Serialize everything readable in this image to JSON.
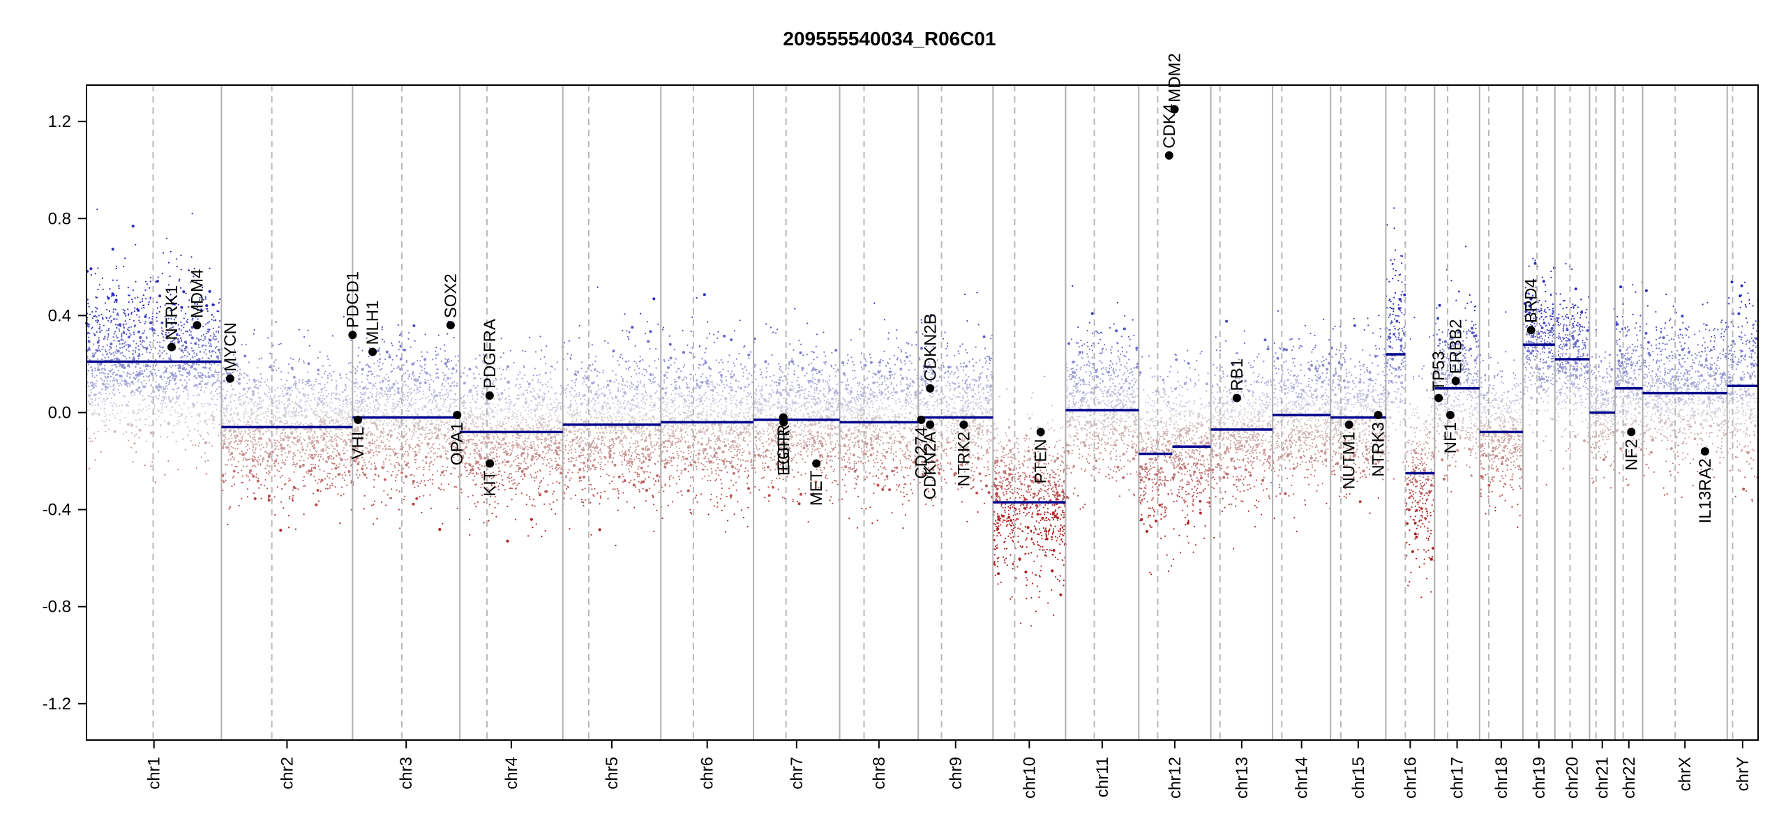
{
  "chart_data": {
    "type": "scatter",
    "title": "209555540034_R06C01",
    "xlabel": "",
    "ylabel": "",
    "ylim": [
      -1.35,
      1.35
    ],
    "yticks": [
      "1.2",
      "0.8",
      "0.4",
      "0.0",
      "-0.4",
      "-0.8",
      "-1.2"
    ],
    "ytick_values": [
      1.2,
      0.8,
      0.4,
      0.0,
      -0.4,
      -0.8,
      -1.2
    ],
    "genome_units": "Mb",
    "chromosomes": [
      {
        "name": "chr1",
        "length": 249,
        "centromere": 123
      },
      {
        "name": "chr2",
        "length": 242,
        "centromere": 93
      },
      {
        "name": "chr3",
        "length": 198,
        "centromere": 91
      },
      {
        "name": "chr4",
        "length": 190,
        "centromere": 50
      },
      {
        "name": "chr5",
        "length": 181,
        "centromere": 48
      },
      {
        "name": "chr6",
        "length": 171,
        "centromere": 60
      },
      {
        "name": "chr7",
        "length": 159,
        "centromere": 60
      },
      {
        "name": "chr8",
        "length": 145,
        "centromere": 45
      },
      {
        "name": "chr9",
        "length": 138,
        "centromere": 43
      },
      {
        "name": "chr10",
        "length": 134,
        "centromere": 40
      },
      {
        "name": "chr11",
        "length": 135,
        "centromere": 53
      },
      {
        "name": "chr12",
        "length": 133,
        "centromere": 35
      },
      {
        "name": "chr13",
        "length": 114,
        "centromere": 17
      },
      {
        "name": "chr14",
        "length": 107,
        "centromere": 17
      },
      {
        "name": "chr15",
        "length": 102,
        "centromere": 19
      },
      {
        "name": "chr16",
        "length": 90,
        "centromere": 36
      },
      {
        "name": "chr17",
        "length": 83,
        "centromere": 24
      },
      {
        "name": "chr18",
        "length": 80,
        "centromere": 17
      },
      {
        "name": "chr19",
        "length": 59,
        "centromere": 26
      },
      {
        "name": "chr20",
        "length": 64,
        "centromere": 28
      },
      {
        "name": "chr21",
        "length": 47,
        "centromere": 12
      },
      {
        "name": "chr22",
        "length": 51,
        "centromere": 15
      },
      {
        "name": "chrX",
        "length": 156,
        "centromere": 60
      },
      {
        "name": "chrY",
        "length": 57,
        "centromere": 10
      }
    ],
    "segments": [
      {
        "chr": "chr1",
        "start": 0,
        "end": 249,
        "value": 0.21
      },
      {
        "chr": "chr2",
        "start": 0,
        "end": 242,
        "value": -0.06
      },
      {
        "chr": "chr3",
        "start": 0,
        "end": 198,
        "value": -0.02
      },
      {
        "chr": "chr4",
        "start": 0,
        "end": 190,
        "value": -0.08
      },
      {
        "chr": "chr5",
        "start": 0,
        "end": 181,
        "value": -0.05
      },
      {
        "chr": "chr6",
        "start": 0,
        "end": 171,
        "value": -0.04
      },
      {
        "chr": "chr7",
        "start": 0,
        "end": 159,
        "value": -0.03
      },
      {
        "chr": "chr8",
        "start": 0,
        "end": 145,
        "value": -0.04
      },
      {
        "chr": "chr9",
        "start": 0,
        "end": 138,
        "value": -0.02
      },
      {
        "chr": "chr10",
        "start": 0,
        "end": 134,
        "value": -0.37
      },
      {
        "chr": "chr11",
        "start": 0,
        "end": 135,
        "value": 0.01
      },
      {
        "chr": "chr12",
        "start": 0,
        "end": 62,
        "value": -0.17
      },
      {
        "chr": "chr12",
        "start": 62,
        "end": 133,
        "value": -0.14
      },
      {
        "chr": "chr13",
        "start": 0,
        "end": 114,
        "value": -0.07
      },
      {
        "chr": "chr14",
        "start": 0,
        "end": 107,
        "value": -0.01
      },
      {
        "chr": "chr15",
        "start": 0,
        "end": 102,
        "value": -0.02
      },
      {
        "chr": "chr16",
        "start": 0,
        "end": 36,
        "value": 0.24
      },
      {
        "chr": "chr16",
        "start": 36,
        "end": 90,
        "value": -0.25
      },
      {
        "chr": "chr17",
        "start": 0,
        "end": 83,
        "value": 0.1
      },
      {
        "chr": "chr18",
        "start": 0,
        "end": 80,
        "value": -0.08
      },
      {
        "chr": "chr19",
        "start": 0,
        "end": 59,
        "value": 0.28
      },
      {
        "chr": "chr20",
        "start": 0,
        "end": 64,
        "value": 0.22
      },
      {
        "chr": "chr21",
        "start": 0,
        "end": 47,
        "value": 0.0
      },
      {
        "chr": "chr22",
        "start": 0,
        "end": 51,
        "value": 0.1
      },
      {
        "chr": "chrX",
        "start": 0,
        "end": 156,
        "value": 0.08
      },
      {
        "chr": "chrY",
        "start": 0,
        "end": 57,
        "value": 0.11
      }
    ],
    "genes": [
      {
        "name": "NTRK1",
        "chr": "chr1",
        "pos": 157,
        "value": 0.27
      },
      {
        "name": "MDM4",
        "chr": "chr1",
        "pos": 204,
        "value": 0.36
      },
      {
        "name": "MYCN",
        "chr": "chr2",
        "pos": 16,
        "value": 0.14
      },
      {
        "name": "PDCD1",
        "chr": "chr2",
        "pos": 242,
        "value": 0.32
      },
      {
        "name": "VHL",
        "chr": "chr3",
        "pos": 10,
        "value": -0.03
      },
      {
        "name": "MLH1",
        "chr": "chr3",
        "pos": 37,
        "value": 0.25
      },
      {
        "name": "SOX2",
        "chr": "chr3",
        "pos": 181,
        "value": 0.36
      },
      {
        "name": "OPA1",
        "chr": "chr3",
        "pos": 193,
        "value": -0.01
      },
      {
        "name": "PDGFRA",
        "chr": "chr4",
        "pos": 55,
        "value": 0.07
      },
      {
        "name": "KIT",
        "chr": "chr4",
        "pos": 55.5,
        "value": -0.21
      },
      {
        "name": "EGFR",
        "chr": "chr7",
        "pos": 55,
        "value": -0.02
      },
      {
        "name": "EGFR_dup",
        "label": "EGFR",
        "chr": "chr7",
        "pos": 55.6,
        "value": -0.04
      },
      {
        "name": "MET",
        "chr": "chr7",
        "pos": 116,
        "value": -0.21
      },
      {
        "name": "CDKN2A",
        "chr": "chr9",
        "pos": 21.9,
        "value": -0.05
      },
      {
        "name": "CDKN2B",
        "chr": "chr9",
        "pos": 22,
        "value": 0.1
      },
      {
        "name": "CD274",
        "chr": "chr9",
        "pos": 5.5,
        "value": -0.03
      },
      {
        "name": "NTRK2",
        "chr": "chr9",
        "pos": 84,
        "value": -0.05
      },
      {
        "name": "PTEN",
        "chr": "chr10",
        "pos": 88,
        "value": -0.08
      },
      {
        "name": "CDK4",
        "chr": "chr12",
        "pos": 56,
        "value": 1.06
      },
      {
        "name": "MDM2",
        "chr": "chr12",
        "pos": 66,
        "value": 1.25
      },
      {
        "name": "RB1",
        "chr": "chr13",
        "pos": 48,
        "value": 0.06
      },
      {
        "name": "NUTM1",
        "chr": "chr15",
        "pos": 34,
        "value": -0.05
      },
      {
        "name": "NTRK3",
        "chr": "chr15",
        "pos": 88,
        "value": -0.01
      },
      {
        "name": "TP53",
        "chr": "chr17",
        "pos": 7.5,
        "value": 0.06
      },
      {
        "name": "NF1",
        "chr": "chr17",
        "pos": 29,
        "value": -0.01
      },
      {
        "name": "ERBB2",
        "chr": "chr17",
        "pos": 39,
        "value": 0.13
      },
      {
        "name": "BRD4",
        "chr": "chr19",
        "pos": 15,
        "value": 0.34
      },
      {
        "name": "NF2",
        "chr": "chr22",
        "pos": 30,
        "value": -0.08
      },
      {
        "name": "IL13RA2",
        "chrs": "chrX",
        "chr": "chrX",
        "pos": 115,
        "value": -0.16
      }
    ],
    "probe_profile": [
      {
        "chr": "chr1",
        "mean": 0.21,
        "spread": 0.16
      },
      {
        "chr": "chr2",
        "mean": -0.06,
        "spread": 0.14
      },
      {
        "chr": "chr3",
        "mean": -0.02,
        "spread": 0.15
      },
      {
        "chr": "chr4",
        "mean": -0.08,
        "spread": 0.14
      },
      {
        "chr": "chr5",
        "mean": -0.05,
        "spread": 0.15
      },
      {
        "chr": "chr6",
        "mean": -0.04,
        "spread": 0.15
      },
      {
        "chr": "chr7",
        "mean": -0.03,
        "spread": 0.14
      },
      {
        "chr": "chr8",
        "mean": -0.04,
        "spread": 0.15
      },
      {
        "chr": "chr9",
        "mean": -0.02,
        "spread": 0.15
      },
      {
        "chr": "chr10",
        "mean": -0.37,
        "spread": 0.17
      },
      {
        "chr": "chr11",
        "mean": 0.01,
        "spread": 0.15
      },
      {
        "chr": "chr12",
        "mean": -0.15,
        "spread": 0.16
      },
      {
        "chr": "chr13",
        "mean": -0.07,
        "spread": 0.14
      },
      {
        "chr": "chr14",
        "mean": -0.01,
        "spread": 0.15
      },
      {
        "chr": "chr15",
        "mean": -0.02,
        "spread": 0.14
      },
      {
        "chr": "chr16",
        "mean": 0.0,
        "spread": 0.2
      },
      {
        "chr": "chr17",
        "mean": 0.1,
        "spread": 0.16
      },
      {
        "chr": "chr18",
        "mean": -0.08,
        "spread": 0.13
      },
      {
        "chr": "chr19",
        "mean": 0.28,
        "spread": 0.14
      },
      {
        "chr": "chr20",
        "mean": 0.22,
        "spread": 0.14
      },
      {
        "chr": "chr21",
        "mean": 0.0,
        "spread": 0.12
      },
      {
        "chr": "chr22",
        "mean": 0.1,
        "spread": 0.15
      },
      {
        "chr": "chrX",
        "mean": 0.08,
        "spread": 0.14
      },
      {
        "chr": "chrY",
        "mean": 0.11,
        "spread": 0.18
      }
    ],
    "colors": {
      "gain": "#2b2bb0",
      "loss": "#b01818",
      "neutral": "#cfcfcf",
      "segment": "#00008b",
      "gene_point": "#000000",
      "chr_boundary": "#b0b0b0",
      "centromere": "#b8b8b8"
    },
    "grid": false
  }
}
